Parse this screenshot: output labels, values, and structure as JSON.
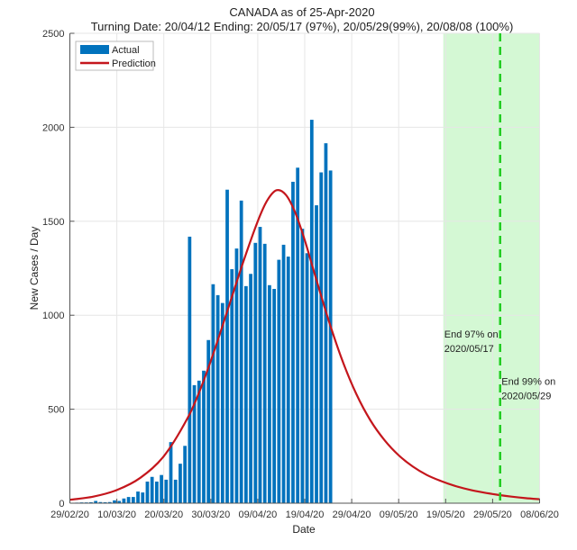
{
  "chart_data": {
    "type": "bar",
    "title": "CANADA as of 25-Apr-2020",
    "subtitle": "Turning Date: 20/04/12  Ending: 20/05/17 (97%), 20/05/29(99%), 20/08/08 (100%)",
    "xlabel": "Date",
    "ylabel": "New Cases / Day",
    "x_start_date": "29/02/20",
    "xlim_days": [
      0,
      100
    ],
    "ylim": [
      0,
      2500
    ],
    "yticks": [
      0,
      500,
      1000,
      1500,
      2000,
      2500
    ],
    "xticks": [
      {
        "day": 0,
        "label": "29/02/20"
      },
      {
        "day": 10,
        "label": "10/03/20"
      },
      {
        "day": 20,
        "label": "20/03/20"
      },
      {
        "day": 30,
        "label": "30/03/20"
      },
      {
        "day": 40,
        "label": "09/04/20"
      },
      {
        "day": 50,
        "label": "19/04/20"
      },
      {
        "day": 60,
        "label": "29/04/20"
      },
      {
        "day": 70,
        "label": "09/05/20"
      },
      {
        "day": 80,
        "label": "19/05/20"
      },
      {
        "day": 90,
        "label": "29/05/20"
      },
      {
        "day": 100,
        "label": "08/06/20"
      }
    ],
    "grid": true,
    "legend": {
      "placement": "top-left",
      "entries": [
        {
          "name": "Actual",
          "style": "bar",
          "color": "#0072BD"
        },
        {
          "name": "Prediction",
          "style": "line",
          "color": "#C4161C"
        }
      ]
    },
    "series": [
      {
        "name": "Actual",
        "kind": "bar",
        "color": "#0072BD",
        "x_days": [
          0,
          1,
          2,
          3,
          4,
          5,
          6,
          7,
          8,
          9,
          10,
          11,
          12,
          13,
          14,
          15,
          16,
          17,
          18,
          19,
          20,
          21,
          22,
          23,
          24,
          25,
          26,
          27,
          28,
          29,
          30,
          31,
          32,
          33,
          34,
          35,
          36,
          37,
          38,
          39,
          40,
          41,
          42,
          43,
          44,
          45,
          46,
          47,
          48,
          49,
          50,
          51,
          52,
          53,
          54,
          55
        ],
        "values": [
          2,
          3,
          4,
          4,
          5,
          12,
          6,
          5,
          6,
          15,
          12,
          25,
          33,
          33,
          62,
          57,
          115,
          140,
          115,
          150,
          125,
          325,
          125,
          210,
          305,
          1418,
          628,
          652,
          705,
          868,
          1165,
          1107,
          1065,
          1668,
          1245,
          1355,
          1610,
          1155,
          1220,
          1385,
          1470,
          1380,
          1160,
          1140,
          1295,
          1375,
          1312,
          1710,
          1785,
          1460,
          1330,
          2040,
          1585,
          1760,
          1915,
          1770
        ]
      },
      {
        "name": "Prediction",
        "kind": "line",
        "color": "#C4161C",
        "x_days": [
          0,
          5,
          10,
          15,
          20,
          25,
          28,
          31,
          34,
          37,
          40,
          42,
          44,
          46,
          48,
          50,
          52,
          55,
          58,
          61,
          64,
          67,
          70,
          73,
          76,
          79,
          82,
          85,
          88,
          91,
          94,
          97,
          100
        ],
        "values": [
          18,
          35,
          70,
          135,
          250,
          450,
          620,
          830,
          1060,
          1290,
          1500,
          1610,
          1665,
          1640,
          1545,
          1400,
          1230,
          980,
          760,
          580,
          440,
          335,
          255,
          195,
          150,
          118,
          92,
          72,
          57,
          45,
          35,
          27,
          21
        ]
      }
    ],
    "shaded_region": {
      "from_day": 79.5,
      "to_day": 100,
      "color": "#CCF7CC"
    },
    "vertical_marker": {
      "day": 91.6,
      "style": "dashed",
      "color": "#22CC22"
    },
    "annotations": [
      {
        "lines": [
          "End 97% on",
          "2020/05/17"
        ],
        "day": 79.7,
        "value": 900
      },
      {
        "lines": [
          "End 99% on",
          "2020/05/29"
        ],
        "day": 91.9,
        "value": 650
      }
    ]
  }
}
